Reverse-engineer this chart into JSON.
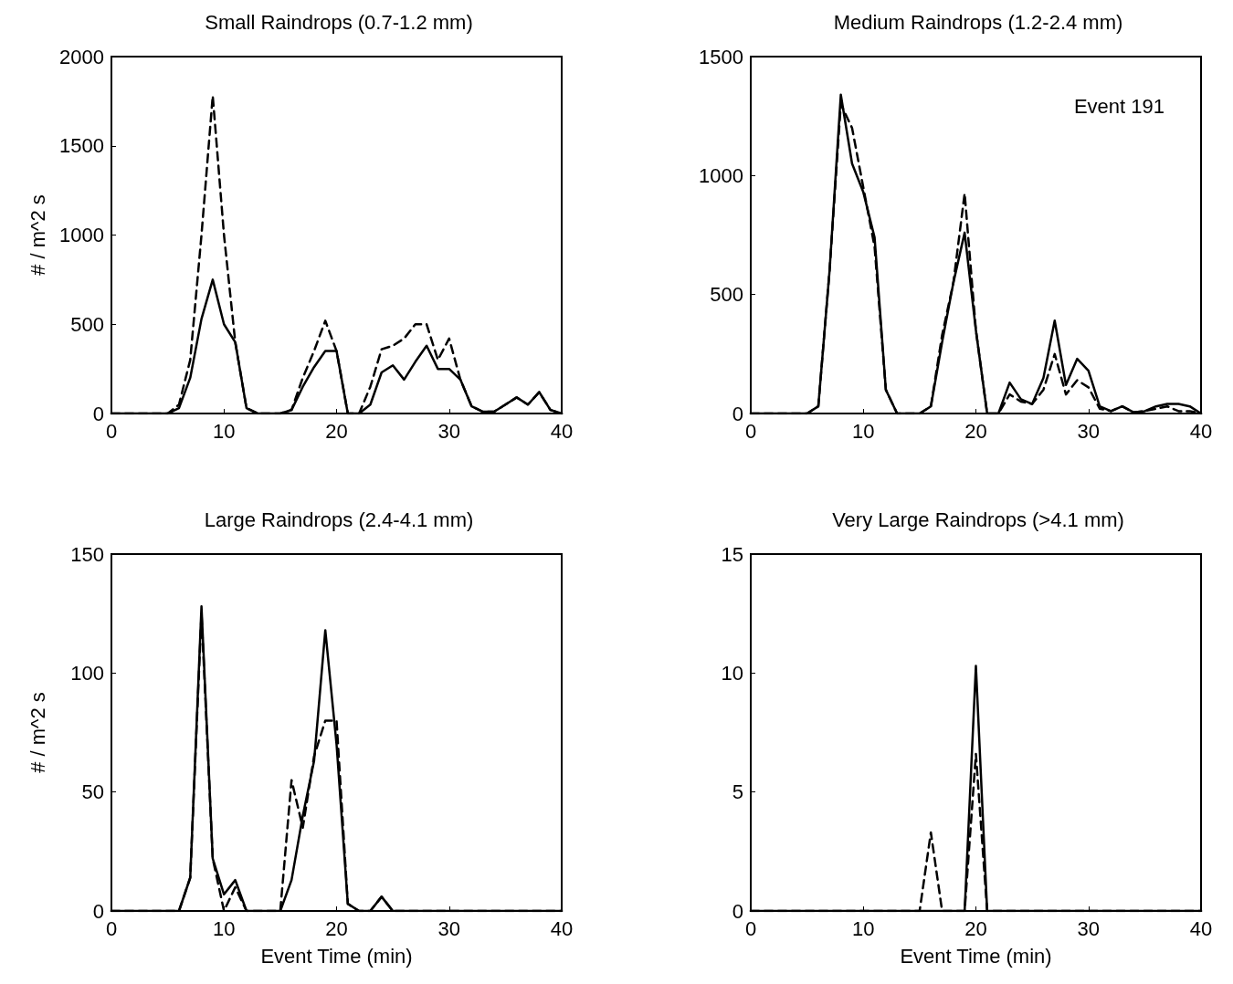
{
  "chart_data": [
    {
      "type": "line",
      "title": "Small Raindrops (0.7-1.2 mm)",
      "ylabel": "# / m^2 s",
      "marker": "none",
      "xlim": [
        0,
        40
      ],
      "xticks": [
        0,
        10,
        20,
        30,
        40
      ],
      "ylim": [
        0,
        2000
      ],
      "yticks": [
        0,
        500,
        1000,
        1500,
        2000
      ],
      "x": [
        0,
        1,
        2,
        3,
        4,
        5,
        6,
        7,
        8,
        9,
        10,
        11,
        12,
        13,
        14,
        15,
        16,
        17,
        18,
        19,
        20,
        21,
        22,
        23,
        24,
        25,
        26,
        27,
        28,
        29,
        30,
        31,
        32,
        33,
        34,
        35,
        36,
        37,
        38,
        39,
        40
      ],
      "series": [
        {
          "color": "#000000",
          "line_style": "dashed",
          "values": [
            0,
            0,
            0,
            0,
            0,
            0,
            50,
            300,
            1000,
            1780,
            1000,
            400,
            30,
            0,
            0,
            0,
            20,
            200,
            350,
            520,
            350,
            0,
            0,
            150,
            360,
            380,
            420,
            500,
            500,
            300,
            420,
            190,
            40,
            10,
            10,
            50,
            90,
            50,
            120,
            20,
            0
          ]
        },
        {
          "color": "#000000",
          "line_style": "solid",
          "values": [
            0,
            0,
            0,
            0,
            0,
            0,
            30,
            200,
            530,
            750,
            500,
            400,
            30,
            0,
            0,
            0,
            20,
            150,
            260,
            350,
            350,
            0,
            0,
            50,
            230,
            270,
            190,
            290,
            380,
            250,
            250,
            190,
            40,
            10,
            10,
            50,
            90,
            50,
            120,
            20,
            0
          ]
        }
      ]
    },
    {
      "type": "line",
      "title": "Medium Raindrops (1.2-2.4 mm)",
      "annotations": [
        "Event 191"
      ],
      "marker": "none",
      "xlim": [
        0,
        40
      ],
      "xticks": [
        0,
        10,
        20,
        30,
        40
      ],
      "ylim": [
        0,
        1500
      ],
      "yticks": [
        0,
        500,
        1000,
        1500
      ],
      "x": [
        0,
        1,
        2,
        3,
        4,
        5,
        6,
        7,
        8,
        9,
        10,
        11,
        12,
        13,
        14,
        15,
        16,
        17,
        18,
        19,
        20,
        21,
        22,
        23,
        24,
        25,
        26,
        27,
        28,
        29,
        30,
        31,
        32,
        33,
        34,
        35,
        36,
        37,
        38,
        39,
        40
      ],
      "series": [
        {
          "color": "#000000",
          "line_style": "dashed",
          "values": [
            0,
            0,
            0,
            0,
            0,
            0,
            30,
            600,
            1300,
            1200,
            950,
            700,
            100,
            0,
            0,
            0,
            30,
            330,
            550,
            925,
            350,
            0,
            0,
            80,
            50,
            40,
            100,
            250,
            80,
            140,
            110,
            20,
            10,
            30,
            5,
            10,
            20,
            30,
            10,
            10,
            0
          ]
        },
        {
          "color": "#000000",
          "line_style": "solid",
          "values": [
            0,
            0,
            0,
            0,
            0,
            0,
            30,
            600,
            1340,
            1050,
            930,
            740,
            100,
            0,
            0,
            0,
            30,
            300,
            550,
            760,
            350,
            0,
            0,
            130,
            60,
            40,
            150,
            390,
            120,
            230,
            180,
            30,
            10,
            30,
            5,
            10,
            30,
            40,
            40,
            30,
            0
          ]
        }
      ]
    },
    {
      "type": "line",
      "title": "Large Raindrops (2.4-4.1 mm)",
      "xlabel": "Event Time (min)",
      "ylabel": "# / m^2 s",
      "marker": "none",
      "xlim": [
        0,
        40
      ],
      "xticks": [
        0,
        10,
        20,
        30,
        40
      ],
      "ylim": [
        0,
        150
      ],
      "yticks": [
        0,
        50,
        100,
        150
      ],
      "x": [
        0,
        1,
        2,
        3,
        4,
        5,
        6,
        7,
        8,
        9,
        10,
        11,
        12,
        13,
        14,
        15,
        16,
        17,
        18,
        19,
        20,
        21,
        22,
        23,
        24,
        25,
        26,
        27,
        28,
        29,
        30,
        31,
        32,
        33,
        34,
        35,
        36,
        37,
        38,
        39,
        40
      ],
      "series": [
        {
          "color": "#000000",
          "line_style": "dashed",
          "values": [
            0,
            0,
            0,
            0,
            0,
            0,
            0,
            14,
            125,
            22,
            0,
            10,
            0,
            0,
            0,
            0,
            55,
            35,
            65,
            80,
            80,
            3,
            0,
            0,
            6,
            0,
            0,
            0,
            0,
            0,
            0,
            0,
            0,
            0,
            0,
            0,
            0,
            0,
            0,
            0,
            0
          ]
        },
        {
          "color": "#000000",
          "line_style": "solid",
          "values": [
            0,
            0,
            0,
            0,
            0,
            0,
            0,
            14,
            128,
            22,
            7,
            13,
            0,
            0,
            0,
            0,
            13,
            40,
            63,
            118,
            70,
            3,
            0,
            0,
            6,
            0,
            0,
            0,
            0,
            0,
            0,
            0,
            0,
            0,
            0,
            0,
            0,
            0,
            0,
            0,
            0
          ]
        }
      ]
    },
    {
      "type": "line",
      "title": "Very Large Raindrops (>4.1 mm)",
      "xlabel": "Event Time (min)",
      "marker": "none",
      "xlim": [
        0,
        40
      ],
      "xticks": [
        0,
        10,
        20,
        30,
        40
      ],
      "ylim": [
        0,
        15
      ],
      "yticks": [
        0,
        5,
        10,
        15
      ],
      "x": [
        0,
        1,
        2,
        3,
        4,
        5,
        6,
        7,
        8,
        9,
        10,
        11,
        12,
        13,
        14,
        15,
        16,
        17,
        18,
        19,
        20,
        21,
        22,
        23,
        24,
        25,
        26,
        27,
        28,
        29,
        30,
        31,
        32,
        33,
        34,
        35,
        36,
        37,
        38,
        39,
        40
      ],
      "series": [
        {
          "color": "#000000",
          "line_style": "dashed",
          "values": [
            0,
            0,
            0,
            0,
            0,
            0,
            0,
            0,
            0,
            0,
            0,
            0,
            0,
            0,
            0,
            0,
            3.3,
            0,
            0,
            0,
            6.6,
            0,
            0,
            0,
            0,
            0,
            0,
            0,
            0,
            0,
            0,
            0,
            0,
            0,
            0,
            0,
            0,
            0,
            0,
            0,
            0
          ]
        },
        {
          "color": "#000000",
          "line_style": "solid",
          "values": [
            0,
            0,
            0,
            0,
            0,
            0,
            0,
            0,
            0,
            0,
            0,
            0,
            0,
            0,
            0,
            0,
            0,
            0,
            0,
            0,
            10.3,
            0,
            0,
            0,
            0,
            0,
            0,
            0,
            0,
            0,
            0,
            0,
            0,
            0,
            0,
            0,
            0,
            0,
            0,
            0,
            0
          ]
        }
      ]
    }
  ]
}
